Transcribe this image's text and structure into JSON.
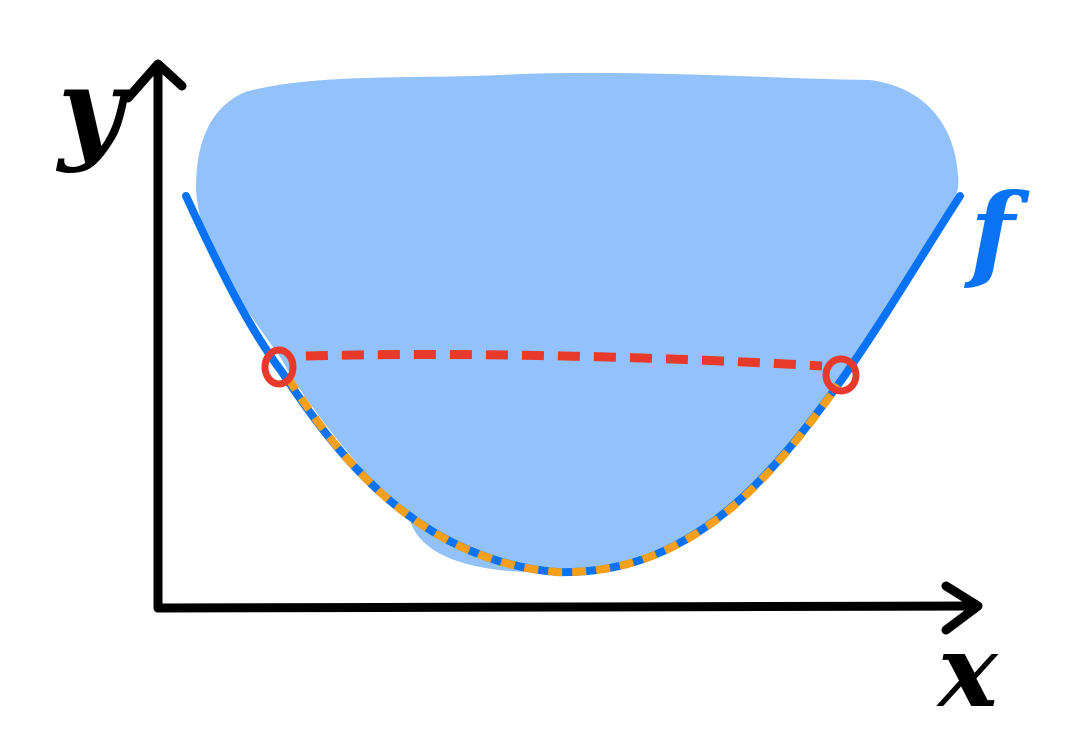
{
  "labels": {
    "y_axis": "y",
    "x_axis": "x",
    "function": "f"
  },
  "colors": {
    "background": "#ffffff",
    "axis": "#000000",
    "epigraph_fill": "#93c2fb",
    "curve": "#0a73f5",
    "chord": "#e83a2c",
    "arc_highlight": "#f5a01a",
    "point_marker": "#e83a2c"
  },
  "icons": {
    "y_axis_arrow": "arrowhead-up-icon",
    "x_axis_arrow": "arrowhead-right-icon",
    "endpoint_markers": "circle-marker-icon"
  }
}
